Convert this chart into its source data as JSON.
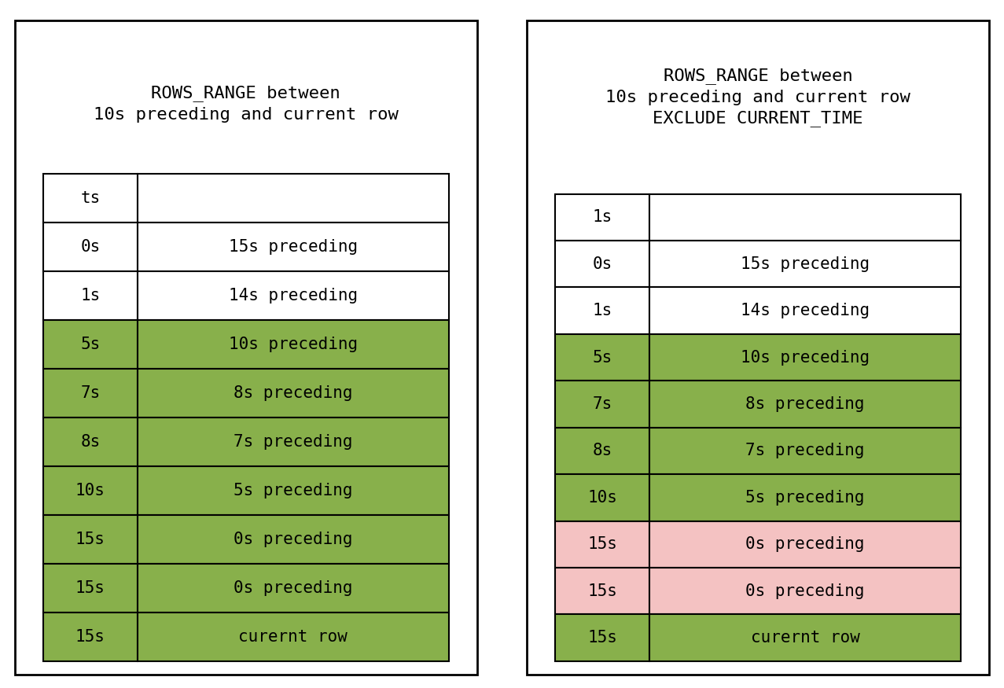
{
  "left_title": "ROWS_RANGE between\n10s preceding and current row",
  "right_title": "ROWS_RANGE between\n10s preceding and current row\nEXCLUDE CURRENT_TIME",
  "left_table": {
    "col1": [
      "ts",
      "0s",
      "1s",
      "5s",
      "7s",
      "8s",
      "10s",
      "15s",
      "15s",
      "15s"
    ],
    "col2": [
      "",
      "15s preceding",
      "14s preceding",
      "10s preceding",
      "8s preceding",
      "7s preceding",
      "5s preceding",
      "0s preceding",
      "0s preceding",
      "curernt row"
    ],
    "row_colors": [
      "#ffffff",
      "#ffffff",
      "#ffffff",
      "#88b04b",
      "#88b04b",
      "#88b04b",
      "#88b04b",
      "#88b04b",
      "#88b04b",
      "#88b04b"
    ],
    "title_lines": 2
  },
  "right_table": {
    "col1": [
      "1s",
      "0s",
      "1s",
      "5s",
      "7s",
      "8s",
      "10s",
      "15s",
      "15s",
      "15s"
    ],
    "col2": [
      "",
      "15s preceding",
      "14s preceding",
      "10s preceding",
      "8s preceding",
      "7s preceding",
      "5s preceding",
      "0s preceding",
      "0s preceding",
      "curernt row"
    ],
    "row_colors": [
      "#ffffff",
      "#ffffff",
      "#ffffff",
      "#88b04b",
      "#88b04b",
      "#88b04b",
      "#88b04b",
      "#f4c2c2",
      "#f4c2c2",
      "#88b04b"
    ],
    "title_lines": 3
  },
  "green_color": "#88b04b",
  "pink_color": "#f4c2c2",
  "white_color": "#ffffff",
  "border_color": "#000000",
  "text_color": "#000000",
  "title_fontsize": 16,
  "cell_fontsize": 15,
  "fig_width": 12.77,
  "fig_height": 8.75
}
